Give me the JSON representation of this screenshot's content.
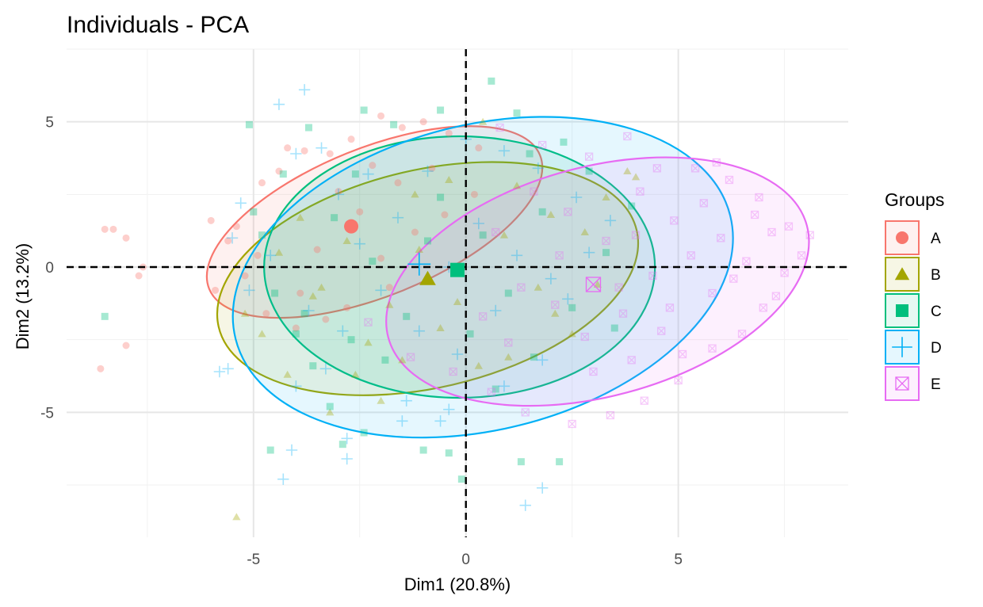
{
  "chart_data": {
    "type": "scatter",
    "title": "Individuals - PCA",
    "xlabel": "Dim1 (20.8%)",
    "ylabel": "Dim2 (13.2%)",
    "xlim": [
      -9.4,
      9.0
    ],
    "ylim": [
      -9.3,
      7.5
    ],
    "x_ticks": [
      -5,
      0,
      5
    ],
    "y_ticks": [
      -5,
      0,
      5
    ],
    "grid": true,
    "reference_lines": {
      "x": 0,
      "y": 0,
      "style": "dashed"
    },
    "legend": {
      "title": "Groups",
      "position": "right"
    },
    "series": [
      {
        "name": "A",
        "color": "#F8766D",
        "marker": "circle",
        "centroid": [
          -2.7,
          1.4
        ],
        "ellipse": {
          "center": [
            -2.15,
            1.55
          ],
          "rx": 4.2,
          "ry": 2.55,
          "angle_deg": 22
        },
        "points": [
          [
            -8.5,
            1.3
          ],
          [
            -8.0,
            1.0
          ],
          [
            -7.6,
            0.0
          ],
          [
            -7.7,
            -0.3
          ],
          [
            -8.0,
            -2.7
          ],
          [
            -8.6,
            -3.5
          ],
          [
            -8.3,
            1.3
          ],
          [
            -5.4,
            1.4
          ],
          [
            -4.8,
            2.9
          ],
          [
            -4.2,
            4.1
          ],
          [
            -3.8,
            4.0
          ],
          [
            -3.2,
            3.9
          ],
          [
            -2.7,
            4.4
          ],
          [
            -2.0,
            5.2
          ],
          [
            -1.5,
            4.8
          ],
          [
            -1.0,
            5.0
          ],
          [
            -0.4,
            4.6
          ],
          [
            0.3,
            4.1
          ],
          [
            -5.6,
            0.9
          ],
          [
            -5.2,
            -0.3
          ],
          [
            -4.7,
            -1.6
          ],
          [
            -4.0,
            -2.1
          ],
          [
            -3.5,
            0.6
          ],
          [
            -3.0,
            2.6
          ],
          [
            -2.5,
            1.9
          ],
          [
            -2.0,
            0.3
          ],
          [
            -1.6,
            2.9
          ],
          [
            -1.2,
            1.2
          ],
          [
            -0.8,
            3.4
          ],
          [
            0.2,
            2.5
          ],
          [
            -5.9,
            -0.8
          ],
          [
            -4.4,
            3.3
          ],
          [
            -3.9,
            -0.9
          ],
          [
            -3.3,
            -1.8
          ],
          [
            -2.8,
            -1.4
          ],
          [
            -2.2,
            3.5
          ],
          [
            -1.8,
            -0.7
          ],
          [
            -0.5,
            1.8
          ],
          [
            -6.0,
            1.6
          ],
          [
            -4.9,
            0.4
          ]
        ]
      },
      {
        "name": "B",
        "color": "#A3A500",
        "marker": "triangle",
        "centroid": [
          -0.9,
          -0.4
        ],
        "ellipse": {
          "center": [
            -0.9,
            -0.4
          ],
          "rx": 5.05,
          "ry": 3.75,
          "angle_deg": 13
        },
        "points": [
          [
            -5.4,
            -8.6
          ],
          [
            -3.2,
            -5.0
          ],
          [
            -4.8,
            -2.3
          ],
          [
            -5.2,
            -1.6
          ],
          [
            -4.2,
            -3.7
          ],
          [
            -2.6,
            -3.7
          ],
          [
            -2.0,
            -4.6
          ],
          [
            -1.5,
            -3.2
          ],
          [
            -1.2,
            2.5
          ],
          [
            -0.4,
            3.0
          ],
          [
            0.4,
            5.0
          ],
          [
            1.2,
            2.8
          ],
          [
            2.0,
            1.8
          ],
          [
            2.8,
            1.2
          ],
          [
            3.3,
            2.4
          ],
          [
            3.8,
            3.3
          ],
          [
            4.0,
            3.1
          ],
          [
            3.1,
            -0.6
          ],
          [
            2.1,
            -1.6
          ],
          [
            1.0,
            -3.1
          ],
          [
            0.3,
            -3.4
          ],
          [
            -0.6,
            -2.1
          ],
          [
            -1.8,
            -1.3
          ],
          [
            -2.8,
            0.9
          ],
          [
            -3.6,
            -1.0
          ],
          [
            -4.4,
            0.5
          ],
          [
            -3.4,
            -0.7
          ],
          [
            -2.3,
            -2.6
          ],
          [
            -1.1,
            0.6
          ],
          [
            0.9,
            1.1
          ],
          [
            1.7,
            -0.7
          ],
          [
            2.5,
            -2.3
          ],
          [
            -0.2,
            -1.2
          ],
          [
            -3.9,
            1.7
          ]
        ]
      },
      {
        "name": "C",
        "color": "#00BF7D",
        "marker": "square",
        "centroid": [
          -0.2,
          -0.1
        ],
        "ellipse": {
          "center": [
            -0.15,
            0.0
          ],
          "rx": 4.6,
          "ry": 4.5,
          "angle_deg": 0
        },
        "points": [
          [
            -8.5,
            -1.7
          ],
          [
            -5.1,
            4.9
          ],
          [
            -4.8,
            1.1
          ],
          [
            -4.5,
            -0.9
          ],
          [
            -4.0,
            -2.3
          ],
          [
            -3.6,
            -3.4
          ],
          [
            -3.2,
            -4.8
          ],
          [
            -2.9,
            -6.1
          ],
          [
            -4.6,
            -6.3
          ],
          [
            -2.4,
            -5.7
          ],
          [
            -1.0,
            -6.3
          ],
          [
            -0.4,
            -6.4
          ],
          [
            -0.1,
            -7.3
          ],
          [
            1.3,
            -6.7
          ],
          [
            2.2,
            -6.7
          ],
          [
            0.7,
            -4.2
          ],
          [
            1.6,
            -3.1
          ],
          [
            2.5,
            -1.4
          ],
          [
            3.3,
            0.5
          ],
          [
            3.9,
            2.1
          ],
          [
            2.3,
            4.3
          ],
          [
            1.2,
            5.3
          ],
          [
            0.6,
            6.4
          ],
          [
            -0.6,
            5.4
          ],
          [
            -1.7,
            4.9
          ],
          [
            -2.4,
            5.4
          ],
          [
            -3.7,
            4.8
          ],
          [
            -4.3,
            3.2
          ],
          [
            -3.1,
            1.7
          ],
          [
            -2.2,
            0.2
          ],
          [
            -1.4,
            -1.7
          ],
          [
            -0.6,
            2.4
          ],
          [
            0.4,
            1.1
          ],
          [
            1.0,
            -0.9
          ],
          [
            1.8,
            1.9
          ],
          [
            -2.6,
            3.2
          ],
          [
            -1.9,
            -3.2
          ],
          [
            0.1,
            -2.3
          ],
          [
            2.9,
            3.3
          ],
          [
            -3.8,
            -1.6
          ],
          [
            -0.9,
            0.9
          ],
          [
            1.5,
            3.9
          ],
          [
            -5.0,
            1.9
          ],
          [
            3.5,
            -2.1
          ],
          [
            -2.7,
            -2.5
          ]
        ]
      },
      {
        "name": "D",
        "color": "#00B0F6",
        "marker": "plus",
        "centroid": [
          -1.1,
          0.1
        ],
        "ellipse": {
          "center": [
            0.4,
            -0.35
          ],
          "rx": 6.0,
          "ry": 5.25,
          "angle_deg": 14
        },
        "points": [
          [
            -3.8,
            6.1
          ],
          [
            -4.4,
            5.6
          ],
          [
            -4.3,
            -7.3
          ],
          [
            -4.1,
            -6.3
          ],
          [
            -5.8,
            -3.6
          ],
          [
            -5.6,
            -3.5
          ],
          [
            -2.8,
            -6.6
          ],
          [
            -2.8,
            -5.9
          ],
          [
            -1.5,
            -5.3
          ],
          [
            -0.6,
            -5.3
          ],
          [
            -0.4,
            -4.9
          ],
          [
            1.4,
            -8.2
          ],
          [
            1.8,
            -7.6
          ],
          [
            -4.0,
            3.9
          ],
          [
            -3.4,
            4.1
          ],
          [
            -3.0,
            2.5
          ],
          [
            -2.3,
            3.2
          ],
          [
            -1.6,
            1.7
          ],
          [
            -0.9,
            3.3
          ],
          [
            0.0,
            4.4
          ],
          [
            0.9,
            4.0
          ],
          [
            1.7,
            3.4
          ],
          [
            2.6,
            2.4
          ],
          [
            2.9,
            0.5
          ],
          [
            2.4,
            -1.1
          ],
          [
            1.8,
            -3.2
          ],
          [
            0.9,
            -4.1
          ],
          [
            -0.2,
            -3.0
          ],
          [
            -1.1,
            -2.2
          ],
          [
            -2.0,
            -0.8
          ],
          [
            -2.9,
            -2.2
          ],
          [
            -3.7,
            -1.5
          ],
          [
            -4.6,
            0.4
          ],
          [
            -5.1,
            -0.8
          ],
          [
            -5.3,
            2.2
          ],
          [
            -5.5,
            1.0
          ],
          [
            -4.0,
            -4.1
          ],
          [
            -3.3,
            -3.5
          ],
          [
            -1.4,
            -4.6
          ],
          [
            0.3,
            1.5
          ],
          [
            1.2,
            0.4
          ],
          [
            2.0,
            -0.4
          ],
          [
            -0.4,
            0.0
          ],
          [
            -2.5,
            0.8
          ],
          [
            0.7,
            -1.5
          ],
          [
            3.4,
            1.6
          ]
        ]
      },
      {
        "name": "E",
        "color": "#E76BF3",
        "marker": "square-cross",
        "centroid": [
          3.0,
          -0.6
        ],
        "ellipse": {
          "center": [
            3.1,
            -0.5
          ],
          "rx": 5.1,
          "ry": 3.95,
          "angle_deg": 15
        },
        "points": [
          [
            7.2,
            1.2
          ],
          [
            8.1,
            1.1
          ],
          [
            7.6,
            1.4
          ],
          [
            5.4,
            3.4
          ],
          [
            4.5,
            3.4
          ],
          [
            3.8,
            4.5
          ],
          [
            2.9,
            3.8
          ],
          [
            1.8,
            4.2
          ],
          [
            0.8,
            4.8
          ],
          [
            6.2,
            3.0
          ],
          [
            6.9,
            2.4
          ],
          [
            7.5,
            -0.2
          ],
          [
            7.0,
            -1.4
          ],
          [
            6.5,
            -2.3
          ],
          [
            5.8,
            -2.8
          ],
          [
            5.0,
            -3.9
          ],
          [
            4.2,
            -4.6
          ],
          [
            3.4,
            -5.1
          ],
          [
            2.5,
            -5.4
          ],
          [
            1.4,
            -5.0
          ],
          [
            0.6,
            -4.3
          ],
          [
            -0.3,
            -3.6
          ],
          [
            -1.3,
            -3.1
          ],
          [
            -2.3,
            -1.9
          ],
          [
            0.4,
            -1.7
          ],
          [
            1.3,
            -0.7
          ],
          [
            2.1,
            -1.3
          ],
          [
            2.8,
            -2.4
          ],
          [
            3.7,
            -1.6
          ],
          [
            4.4,
            -0.3
          ],
          [
            5.3,
            0.4
          ],
          [
            6.0,
            1.0
          ],
          [
            6.6,
            0.2
          ],
          [
            5.8,
            -0.9
          ],
          [
            4.8,
            -1.4
          ],
          [
            3.9,
            -3.2
          ],
          [
            4.9,
            1.6
          ],
          [
            3.3,
            0.9
          ],
          [
            2.4,
            1.9
          ],
          [
            1.6,
            2.6
          ],
          [
            0.7,
            1.2
          ],
          [
            5.6,
            2.2
          ],
          [
            6.3,
            -0.4
          ],
          [
            4.6,
            -2.2
          ],
          [
            3.0,
            -3.6
          ],
          [
            6.8,
            1.8
          ],
          [
            7.9,
            0.4
          ],
          [
            5.1,
            -3.0
          ],
          [
            2.2,
            0.4
          ],
          [
            4.1,
            2.6
          ],
          [
            1.0,
            -2.6
          ],
          [
            3.6,
            -0.7
          ],
          [
            7.3,
            -1.0
          ],
          [
            5.9,
            3.6
          ],
          [
            4.0,
            1.1
          ]
        ]
      }
    ]
  }
}
